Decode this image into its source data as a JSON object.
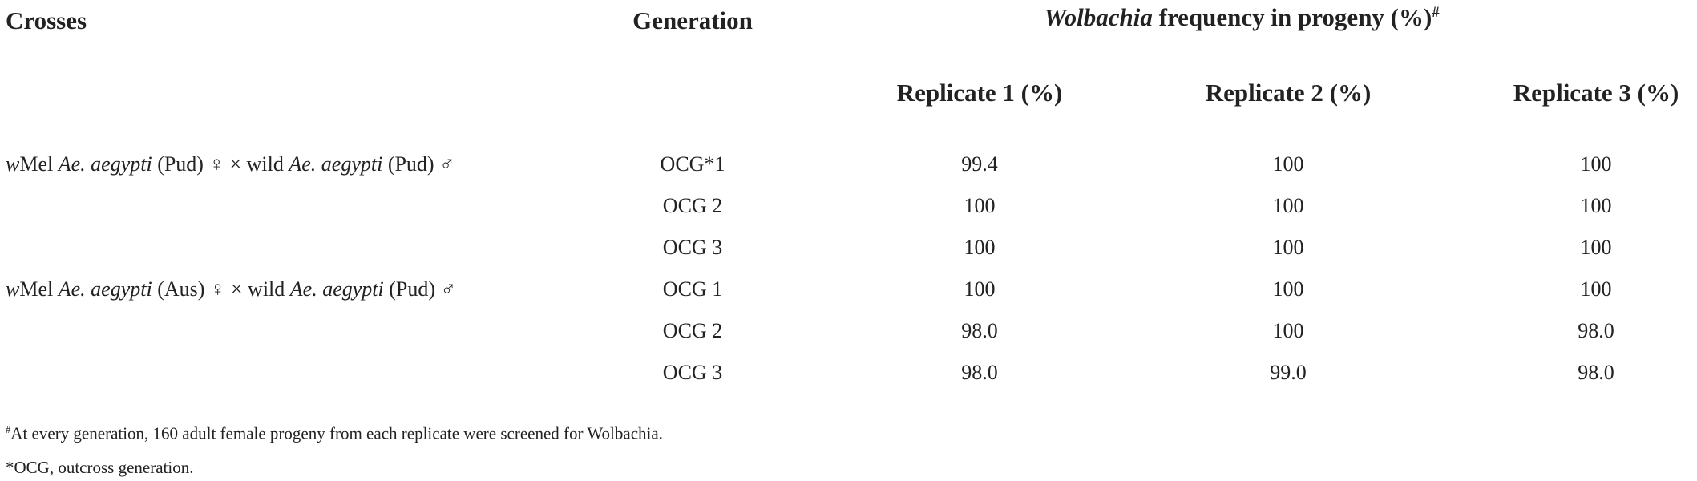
{
  "header": {
    "crosses": "Crosses",
    "generation": "Generation",
    "frequency": [
      {
        "text": "Wolbachia",
        "italic": true
      },
      {
        "text": " frequency in progeny (%)"
      },
      {
        "text": "#",
        "superscript": true
      }
    ],
    "replicates": [
      "Replicate 1 (%)",
      "Replicate 2 (%)",
      "Replicate 3 (%)"
    ]
  },
  "rows": [
    {
      "cross": [
        {
          "text": "w",
          "italic": true
        },
        {
          "text": "Mel "
        },
        {
          "text": "Ae. aegypti",
          "italic": true
        },
        {
          "text": " (Pud) ♀ × wild "
        },
        {
          "text": "Ae. aegypti",
          "italic": true
        },
        {
          "text": " (Pud) ♂"
        }
      ],
      "generation": "OCG*1",
      "values": [
        "99.4",
        "100",
        "100"
      ]
    },
    {
      "generation": "OCG 2",
      "values": [
        "100",
        "100",
        "100"
      ]
    },
    {
      "generation": "OCG 3",
      "values": [
        "100",
        "100",
        "100"
      ]
    },
    {
      "cross": [
        {
          "text": "w",
          "italic": true
        },
        {
          "text": "Mel "
        },
        {
          "text": "Ae. aegypti",
          "italic": true
        },
        {
          "text": " (Aus) ♀ × wild "
        },
        {
          "text": "Ae. aegypti",
          "italic": true
        },
        {
          "text": " (Pud) ♂"
        }
      ],
      "generation": "OCG 1",
      "values": [
        "100",
        "100",
        "100"
      ]
    },
    {
      "generation": "OCG 2",
      "values": [
        "98.0",
        "100",
        "98.0"
      ]
    },
    {
      "generation": "OCG 3",
      "values": [
        "98.0",
        "99.0",
        "98.0"
      ]
    }
  ],
  "footnotes": [
    [
      {
        "text": "#",
        "superscript": true
      },
      {
        "text": "At every generation, 160 adult female progeny from each replicate were screened for Wolbachia."
      }
    ],
    [
      {
        "text": "*OCG, outcross generation."
      }
    ]
  ]
}
